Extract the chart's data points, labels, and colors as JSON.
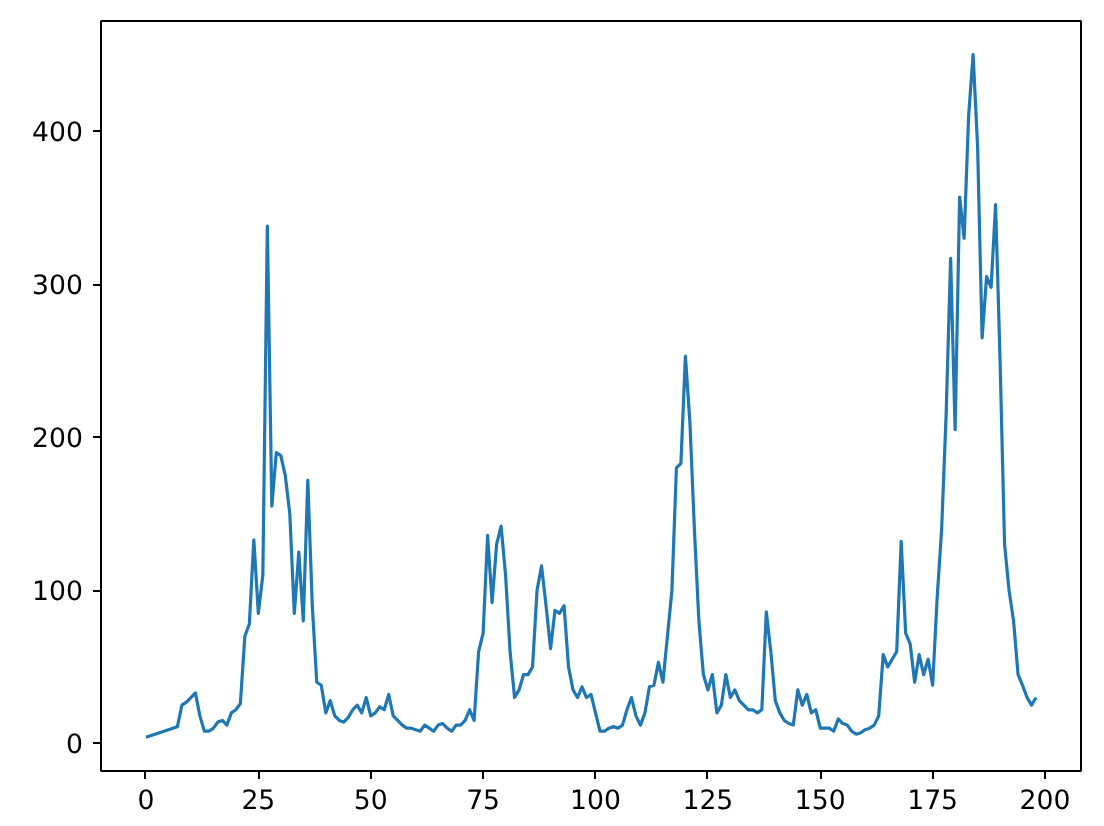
{
  "chart_data": {
    "type": "line",
    "x": [
      0,
      1,
      2,
      3,
      4,
      5,
      6,
      7,
      8,
      9,
      10,
      11,
      12,
      13,
      14,
      15,
      16,
      17,
      18,
      19,
      20,
      21,
      22,
      23,
      24,
      25,
      26,
      27,
      28,
      29,
      30,
      31,
      32,
      33,
      34,
      35,
      36,
      37,
      38,
      39,
      40,
      41,
      42,
      43,
      44,
      45,
      46,
      47,
      48,
      49,
      50,
      51,
      52,
      53,
      54,
      55,
      56,
      57,
      58,
      59,
      60,
      61,
      62,
      63,
      64,
      65,
      66,
      67,
      68,
      69,
      70,
      71,
      72,
      73,
      74,
      75,
      76,
      77,
      78,
      79,
      80,
      81,
      82,
      83,
      84,
      85,
      86,
      87,
      88,
      89,
      90,
      91,
      92,
      93,
      94,
      95,
      96,
      97,
      98,
      99,
      100,
      101,
      102,
      103,
      104,
      105,
      106,
      107,
      108,
      109,
      110,
      111,
      112,
      113,
      114,
      115,
      116,
      117,
      118,
      119,
      120,
      121,
      122,
      123,
      124,
      125,
      126,
      127,
      128,
      129,
      130,
      131,
      132,
      133,
      134,
      135,
      136,
      137,
      138,
      139,
      140,
      141,
      142,
      143,
      144,
      145,
      146,
      147,
      148,
      149,
      150,
      151,
      152,
      153,
      154,
      155,
      156,
      157,
      158,
      159,
      160,
      161,
      162,
      163,
      164,
      165,
      166,
      167,
      168,
      169,
      170,
      171,
      172,
      173,
      174,
      175,
      176,
      177,
      178,
      179,
      180,
      181,
      182,
      183,
      184,
      185,
      186,
      187,
      188,
      189,
      190,
      191,
      192,
      193,
      194,
      195,
      196,
      197,
      198
    ],
    "series": [
      {
        "color": "#1f77b4",
        "values": [
          4,
          5,
          6,
          7,
          8,
          9,
          10,
          11,
          25,
          27,
          30,
          33,
          18,
          8,
          8,
          10,
          14,
          15,
          12,
          20,
          22,
          26,
          70,
          78,
          133,
          85,
          110,
          338,
          155,
          190,
          188,
          175,
          150,
          85,
          125,
          80,
          172,
          90,
          40,
          38,
          20,
          28,
          18,
          15,
          14,
          17,
          22,
          25,
          20,
          30,
          18,
          20,
          24,
          22,
          32,
          18,
          15,
          12,
          10,
          10,
          9,
          8,
          12,
          10,
          8,
          12,
          13,
          10,
          8,
          12,
          12,
          15,
          22,
          15,
          60,
          72,
          136,
          92,
          130,
          142,
          110,
          60,
          30,
          35,
          45,
          45,
          50,
          100,
          116,
          90,
          62,
          87,
          85,
          90,
          50,
          35,
          30,
          37,
          30,
          32,
          20,
          8,
          8,
          10,
          11,
          10,
          12,
          22,
          30,
          18,
          12,
          20,
          37,
          38,
          53,
          40,
          70,
          100,
          180,
          183,
          253,
          210,
          140,
          80,
          45,
          35,
          45,
          20,
          25,
          45,
          30,
          35,
          28,
          25,
          22,
          22,
          20,
          22,
          86,
          60,
          28,
          20,
          15,
          13,
          12,
          35,
          25,
          32,
          20,
          22,
          10,
          10,
          10,
          8,
          16,
          13,
          12,
          8,
          6,
          7,
          9,
          10,
          12,
          18,
          58,
          50,
          55,
          60,
          132,
          72,
          65,
          40,
          58,
          45,
          55,
          38,
          95,
          140,
          215,
          317,
          205,
          357,
          330,
          410,
          450,
          390,
          265,
          305,
          298,
          352,
          250,
          130,
          100,
          80,
          45,
          38,
          30,
          25,
          30
        ]
      }
    ],
    "xlim": [
      -10,
      208
    ],
    "ylim": [
      -18,
      472
    ],
    "xticks": [
      0,
      25,
      50,
      75,
      100,
      125,
      150,
      175,
      200
    ],
    "yticks": [
      0,
      100,
      200,
      300,
      400
    ],
    "grid": false,
    "marker": "none",
    "line_style": "solid"
  }
}
